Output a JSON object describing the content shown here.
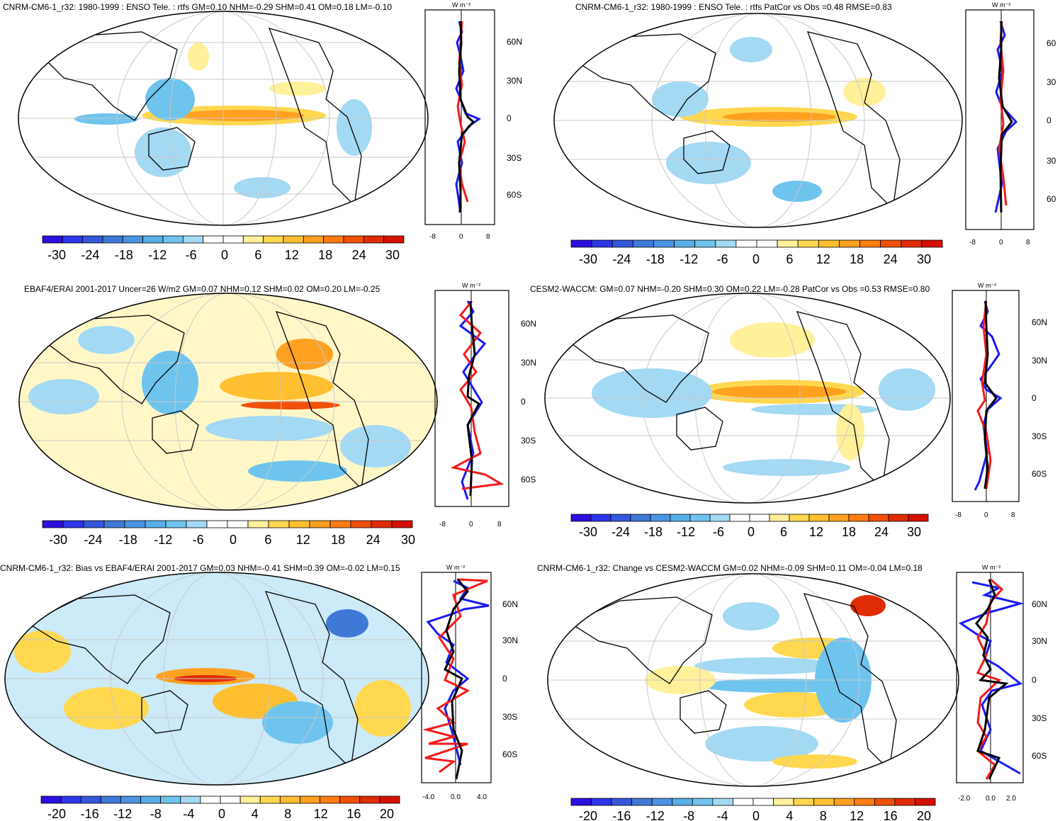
{
  "units_label": "W m⁻²",
  "colorbars": {
    "a": {
      "labels": [
        "-30",
        "-24",
        "-18",
        "-12",
        "-6",
        "0",
        "6",
        "12",
        "18",
        "24",
        "30"
      ]
    },
    "b": {
      "labels": [
        "-20",
        "-16",
        "-12",
        "-8",
        "-4",
        "0",
        "4",
        "8",
        "12",
        "16",
        "20"
      ]
    }
  },
  "palette": [
    "#2b0ee0",
    "#2d36e8",
    "#3457dc",
    "#3f79d8",
    "#4b94e2",
    "#58afe8",
    "#6fc4ee",
    "#a3d9f3",
    "#ffffff",
    "#ffffff",
    "#fff09a",
    "#ffd850",
    "#ffbf30",
    "#ffa020",
    "#ff7c10",
    "#f05008",
    "#e02c04",
    "#d61000"
  ],
  "line_colors": {
    "blue": "#1a1af5",
    "red": "#f51a1a",
    "black": "#000000"
  },
  "panels": [
    {
      "id": "p1",
      "title": "CNRM-CM6-1_r32: 1980-1999 : ENSO Tele. : rtfs GM=0.10 NHM=-0.29 SHM=0.41 OM=0.18 LM=-0.10",
      "colorbar": "a",
      "zx_ticks": [
        "-8",
        "0",
        "8"
      ],
      "lat_ticks": [
        "60N",
        "30N",
        "0",
        "30S",
        "60S"
      ]
    },
    {
      "id": "p2",
      "title": "CNRM-CM6-1_r32: 1980-1999 : ENSO Tele. : rtfs PatCor vs Obs =0.48 RMSE=0.83",
      "colorbar": "a",
      "zx_ticks": [
        "-8",
        "0",
        "8"
      ],
      "lat_ticks": [
        "60",
        "30",
        "0",
        "30",
        "60"
      ]
    },
    {
      "id": "p3",
      "title": "EBAF4/ERAI 2001-2017 Uncer=26 W/m2 GM=0.07 NHM=0.12 SHM=0.02 OM=0.20 LM=-0.25",
      "colorbar": "a",
      "zx_ticks": [
        "-8",
        "0",
        "8"
      ],
      "lat_ticks": [
        "60N",
        "30N",
        "0",
        "30S",
        "60S"
      ]
    },
    {
      "id": "p4",
      "title": "CESM2-WACCM: GM=0.07 NHM=-0.20 SHM=0.30 OM=0.22 LM=-0.28 PatCor vs Obs =0.53 RMSE=0.80",
      "colorbar": "a",
      "zx_ticks": [
        "-8",
        "0",
        "8"
      ],
      "lat_ticks": [
        "60N",
        "30N",
        "0",
        "30S",
        "60S"
      ]
    },
    {
      "id": "p5",
      "title": "CNRM-CM6-1_r32: Bias vs EBAF4/ERAI 2001-2017 GM=0.03 NHM=-0.41 SHM=0.39 OM=-0.02 LM=0.15",
      "colorbar": "b",
      "zx_ticks": [
        "-4.0",
        "0.0",
        "4.0"
      ],
      "lat_ticks": [
        "60N",
        "30N",
        "0",
        "30S",
        "60S"
      ]
    },
    {
      "id": "p6",
      "title": "CNRM-CM6-1_r32: Change vs CESM2-WACCM GM=0.02 NHM=-0.09 SHM=0.11 OM=-0.04 LM=0.18",
      "colorbar": "b",
      "zx_ticks": [
        "-2.0",
        "0.0",
        "2.0"
      ],
      "lat_ticks": [
        "60N",
        "30N",
        "0",
        "30S",
        "60S"
      ]
    }
  ]
}
